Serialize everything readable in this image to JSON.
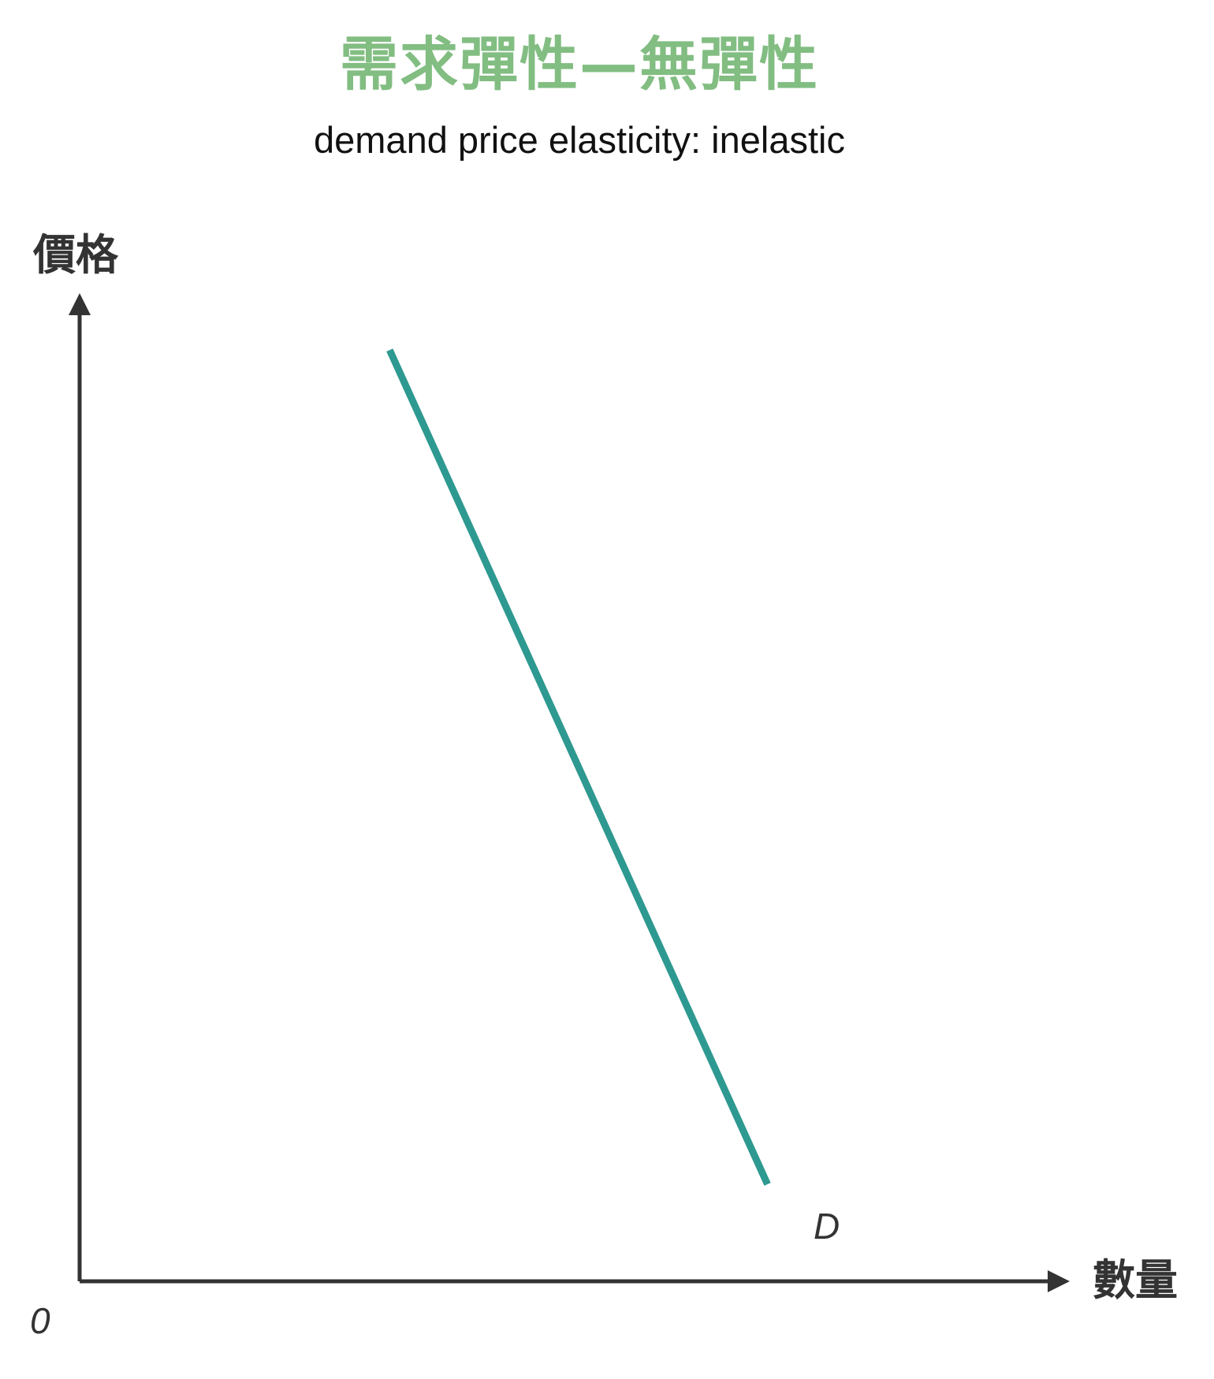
{
  "title": "需求彈性—無彈性",
  "subtitle": "demand price elasticity: inelastic",
  "colors": {
    "title": "#82bd82",
    "curve": "#2e9990",
    "axis": "#333333",
    "label": "#333333"
  },
  "chart_data": {
    "type": "line",
    "title": "需求彈性—無彈性",
    "subtitle": "demand price elasticity: inelastic",
    "xlabel": "數量",
    "ylabel": "價格",
    "origin_label": "0",
    "xlim": [
      0,
      100
    ],
    "ylim": [
      0,
      100
    ],
    "grid": false,
    "ticks": false,
    "series": [
      {
        "name": "D",
        "x": [
          32,
          71
        ],
        "y": [
          96,
          10
        ]
      }
    ]
  }
}
